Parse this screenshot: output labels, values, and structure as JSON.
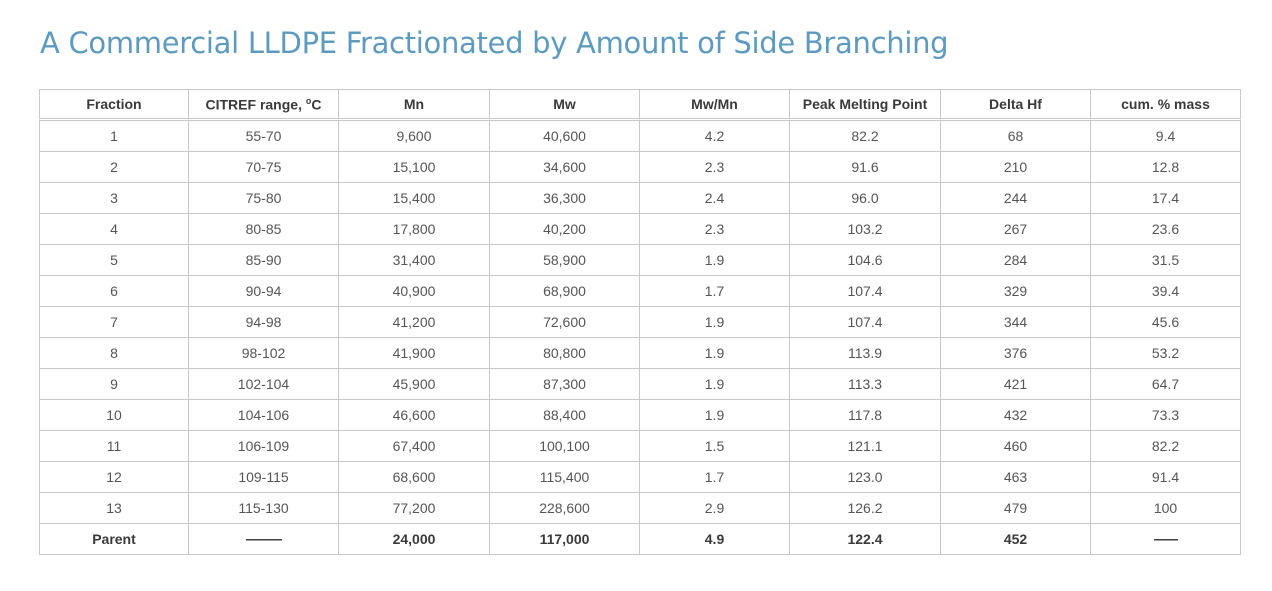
{
  "title": "A Commercial LLDPE Fractionated by Amount of Side Branching",
  "table": {
    "headers": {
      "fraction": "Fraction",
      "citref_prefix": "CITREF range, ",
      "citref_degree": "o",
      "citref_suffix": "C",
      "mn": "Mn",
      "mw": "Mw",
      "mwmn": "Mw/Mn",
      "peak": "Peak Melting Point",
      "delta": "Delta Hf",
      "cum": "cum. % mass"
    },
    "rows": [
      {
        "fraction": "1",
        "citref": "55-70",
        "mn": "9,600",
        "mw": "40,600",
        "mwmn": "4.2",
        "peak": "82.2",
        "delta": "68",
        "cum": "9.4"
      },
      {
        "fraction": "2",
        "citref": "70-75",
        "mn": "15,100",
        "mw": "34,600",
        "mwmn": "2.3",
        "peak": "91.6",
        "delta": "210",
        "cum": "12.8"
      },
      {
        "fraction": "3",
        "citref": "75-80",
        "mn": "15,400",
        "mw": "36,300",
        "mwmn": "2.4",
        "peak": "96.0",
        "delta": "244",
        "cum": "17.4"
      },
      {
        "fraction": "4",
        "citref": "80-85",
        "mn": "17,800",
        "mw": "40,200",
        "mwmn": "2.3",
        "peak": "103.2",
        "delta": "267",
        "cum": "23.6"
      },
      {
        "fraction": "5",
        "citref": "85-90",
        "mn": "31,400",
        "mw": "58,900",
        "mwmn": "1.9",
        "peak": "104.6",
        "delta": "284",
        "cum": "31.5"
      },
      {
        "fraction": "6",
        "citref": "90-94",
        "mn": "40,900",
        "mw": "68,900",
        "mwmn": "1.7",
        "peak": "107.4",
        "delta": "329",
        "cum": "39.4"
      },
      {
        "fraction": "7",
        "citref": "94-98",
        "mn": "41,200",
        "mw": "72,600",
        "mwmn": "1.9",
        "peak": "107.4",
        "delta": "344",
        "cum": "45.6"
      },
      {
        "fraction": "8",
        "citref": "98-102",
        "mn": "41,900",
        "mw": "80,800",
        "mwmn": "1.9",
        "peak": "113.9",
        "delta": "376",
        "cum": "53.2"
      },
      {
        "fraction": "9",
        "citref": "102-104",
        "mn": "45,900",
        "mw": "87,300",
        "mwmn": "1.9",
        "peak": "113.3",
        "delta": "421",
        "cum": "64.7"
      },
      {
        "fraction": "10",
        "citref": "104-106",
        "mn": "46,600",
        "mw": "88,400",
        "mwmn": "1.9",
        "peak": "117.8",
        "delta": "432",
        "cum": "73.3"
      },
      {
        "fraction": "11",
        "citref": "106-109",
        "mn": "67,400",
        "mw": "100,100",
        "mwmn": "1.5",
        "peak": "121.1",
        "delta": "460",
        "cum": "82.2"
      },
      {
        "fraction": "12",
        "citref": "109-115",
        "mn": "68,600",
        "mw": "115,400",
        "mwmn": "1.7",
        "peak": "123.0",
        "delta": "463",
        "cum": "91.4"
      },
      {
        "fraction": "13",
        "citref": "115-130",
        "mn": "77,200",
        "mw": "228,600",
        "mwmn": "2.9",
        "peak": "126.2",
        "delta": "479",
        "cum": "100"
      }
    ],
    "parent": {
      "fraction": "Parent",
      "citref": "------------",
      "mn": "24,000",
      "mw": "117,000",
      "mwmn": "4.9",
      "peak": "122.4",
      "delta": "452",
      "cum": "--------"
    }
  }
}
